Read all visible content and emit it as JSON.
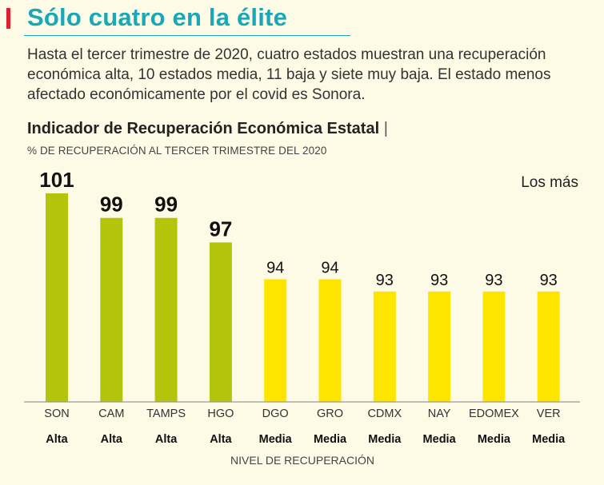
{
  "headline": "Sólo cuatro en la élite",
  "intro": "Hasta el tercer trimestre de 2020, cuatro estados muestran una recuperación económica alta, 10 estados media, 11 baja y siete muy baja. El estado menos afectado económicamente por el covid es Sonora.",
  "colors": {
    "accent": "#e0202a",
    "headline": "#1aa8b8",
    "alta": "#b3c40a",
    "media": "#fde500"
  },
  "chart_data": {
    "type": "bar",
    "title": "Indicador de Recuperación Económica Estatal",
    "title_separator": "|",
    "subtitle": "% DE RECUPERACIÓN AL TERCER TRIMESTRE DEL 2020",
    "corner_label": "Los más",
    "xlabel": "NIVEL DE RECUPERACIÓN",
    "categories": [
      "SON",
      "CAM",
      "TAMPS",
      "HGO",
      "DGO",
      "GRO",
      "CDMX",
      "NAY",
      "EDOMEX",
      "VER"
    ],
    "values": [
      101,
      99,
      99,
      97,
      94,
      94,
      93,
      93,
      93,
      93
    ],
    "levels": [
      "Alta",
      "Alta",
      "Alta",
      "Alta",
      "Media",
      "Media",
      "Media",
      "Media",
      "Media",
      "Media"
    ],
    "ylim": [
      0,
      101
    ],
    "grid": false
  }
}
